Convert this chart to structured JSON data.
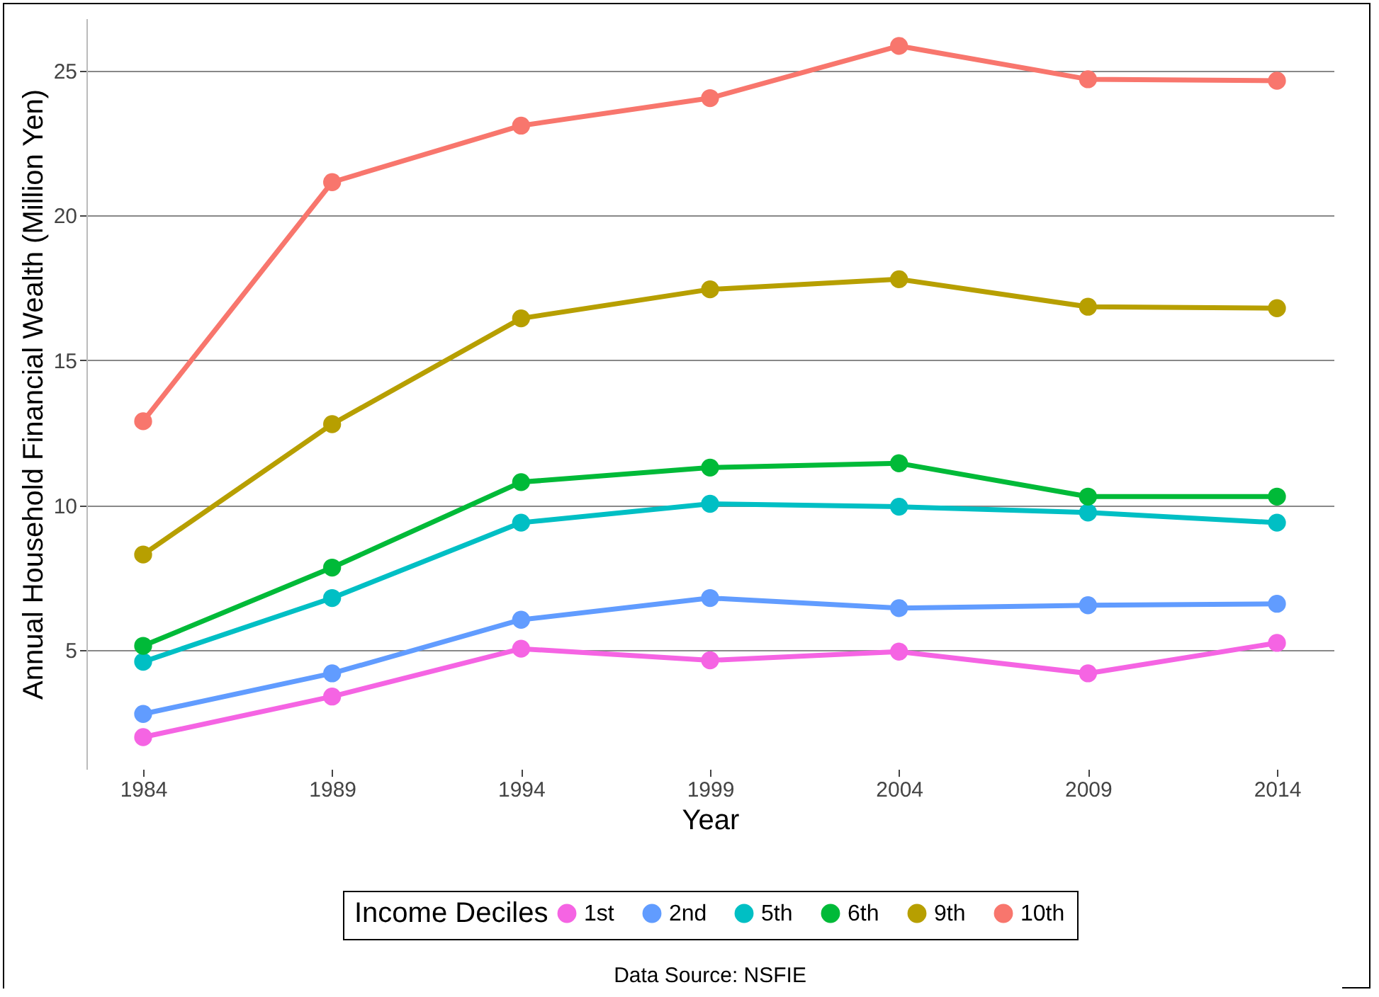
{
  "chart_data": {
    "type": "line",
    "xlabel": "Year",
    "ylabel": "Annual Household Financial Wealth (Million Yen)",
    "legend_title": "Income Deciles",
    "annotations": [
      "Data Source: NSFIE"
    ],
    "x": [
      1984,
      1989,
      1994,
      1999,
      2004,
      2009,
      2014
    ],
    "series": [
      {
        "name": "1st",
        "color": "#f564e3",
        "values": [
          2.0,
          3.4,
          5.05,
          4.65,
          4.95,
          4.2,
          5.25
        ]
      },
      {
        "name": "2nd",
        "color": "#619cff",
        "values": [
          2.8,
          4.2,
          6.05,
          6.8,
          6.45,
          6.55,
          6.6
        ]
      },
      {
        "name": "5th",
        "color": "#00bfc4",
        "values": [
          4.6,
          6.8,
          9.4,
          10.05,
          9.95,
          9.75,
          9.4
        ]
      },
      {
        "name": "6th",
        "color": "#00ba38",
        "values": [
          5.15,
          7.85,
          10.8,
          11.3,
          11.45,
          10.3,
          10.3
        ]
      },
      {
        "name": "9th",
        "color": "#b79f00",
        "values": [
          8.3,
          12.8,
          16.45,
          17.45,
          17.8,
          16.85,
          16.8
        ]
      },
      {
        "name": "10th",
        "color": "#f8766d",
        "values": [
          12.9,
          21.15,
          23.1,
          24.05,
          25.85,
          24.7,
          24.65
        ]
      }
    ],
    "xlim": [
      1982.5,
      2015.5
    ],
    "xticks": [
      1984,
      1989,
      1994,
      1999,
      2004,
      2009,
      2014
    ],
    "ylim": [
      0.9,
      26.8
    ],
    "yticks": [
      5,
      10,
      15,
      20,
      25
    ],
    "grid": "y",
    "legend": "bottom",
    "marker": "circle",
    "line_style": "solid"
  }
}
